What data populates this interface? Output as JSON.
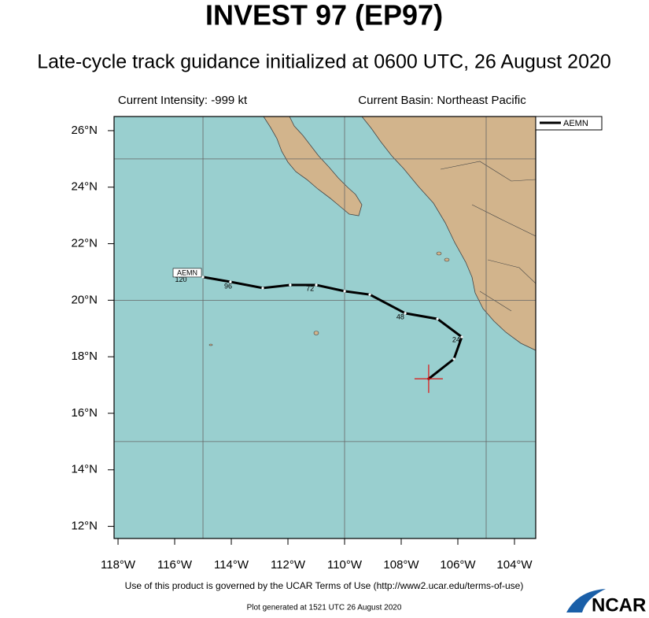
{
  "header": {
    "title": "INVEST 97 (EP97)",
    "subtitle": "Late-cycle track guidance initialized at 0600 UTC, 26 August 2020",
    "intensity": "Current Intensity: -999 kt",
    "basin": "Current Basin: Northeast Pacific"
  },
  "map": {
    "lon_range": [
      -118.14,
      -103.25
    ],
    "lat_range": [
      11.57,
      26.5
    ],
    "lon_ticks": [
      {
        "value": -118,
        "label": "118°W"
      },
      {
        "value": -116,
        "label": "116°W"
      },
      {
        "value": -114,
        "label": "114°W"
      },
      {
        "value": -112,
        "label": "112°W"
      },
      {
        "value": -110,
        "label": "110°W"
      },
      {
        "value": -108,
        "label": "108°W"
      },
      {
        "value": -106,
        "label": "106°W"
      },
      {
        "value": -104,
        "label": "104°W"
      }
    ],
    "lat_ticks": [
      {
        "value": 12,
        "label": "12°N"
      },
      {
        "value": 14,
        "label": "14°N"
      },
      {
        "value": 16,
        "label": "16°N"
      },
      {
        "value": 18,
        "label": "18°N"
      },
      {
        "value": 20,
        "label": "20°N"
      },
      {
        "value": 22,
        "label": "22°N"
      },
      {
        "value": 24,
        "label": "24°N"
      },
      {
        "value": 26,
        "label": "26°N"
      }
    ],
    "grid_lon": [
      -115,
      -110,
      -105
    ],
    "grid_lat": [
      15,
      20,
      25
    ],
    "track": {
      "name": "AEMN",
      "color": "#000000",
      "lon": [
        -107.03,
        -106.14,
        -105.86,
        -106.72,
        -107.86,
        -109.11,
        -110.0,
        -111.0,
        -111.92,
        -112.89,
        -114.03,
        -115.0
      ],
      "lat": [
        17.22,
        17.92,
        18.7,
        19.34,
        19.54,
        20.2,
        20.32,
        20.54,
        20.54,
        20.43,
        20.65,
        20.82
      ]
    },
    "hour_labels": [
      {
        "hour": 24,
        "lon": -106.06,
        "lat": 18.59
      },
      {
        "hour": 48,
        "lon": -108.03,
        "lat": 19.4
      },
      {
        "hour": 72,
        "lon": -111.22,
        "lat": 20.4
      },
      {
        "hour": 96,
        "lon": -114.11,
        "lat": 20.48
      },
      {
        "hour": 120,
        "lon": -115.78,
        "lat": 20.71
      }
    ]
  },
  "footer": {
    "terms": "Use of this product is governed by the UCAR Terms of Use (http://www2.ucar.edu/terms-of-use)",
    "generated": "Plot generated at 1521 UTC   26 August 2020",
    "logo": "NCAR"
  }
}
